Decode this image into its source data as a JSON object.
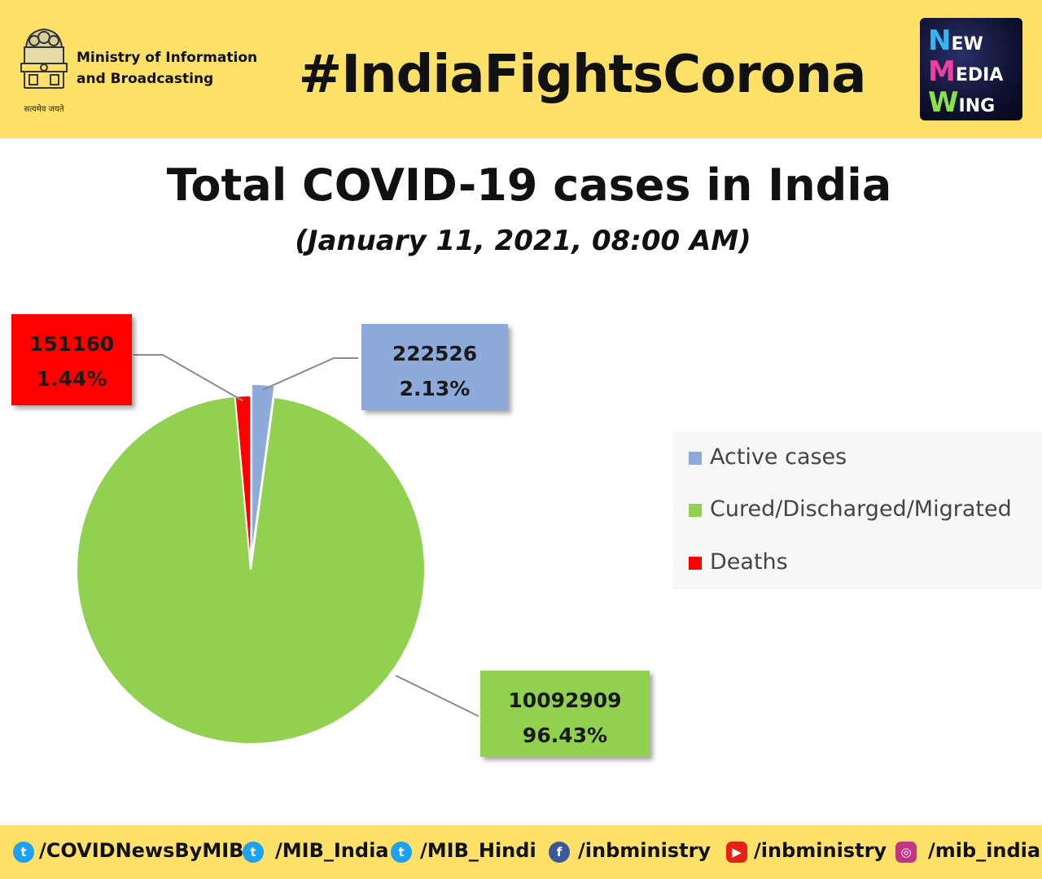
{
  "header": {
    "emblem_motto": "सत्यमेव जयते",
    "ministry_line1": "Ministry of Information",
    "ministry_line2": "and Broadcasting",
    "hashtag": "#IndiaFightsCorona",
    "nmw_line1_cap": "N",
    "nmw_line1_rest": "EW",
    "nmw_line2_cap": "M",
    "nmw_line2_rest": "EDIA",
    "nmw_line3_cap": "W",
    "nmw_line3_rest": "ING"
  },
  "chart_data": {
    "type": "pie",
    "title": "Total COVID-19 cases in India",
    "subtitle": "(January 11, 2021, 08:00 AM)",
    "series": [
      {
        "name": "Active cases",
        "value": 222526,
        "value_label": "222526",
        "percent_label": "2.13%",
        "color": "#8eaadb"
      },
      {
        "name": "Cured/Discharged/Migrated",
        "value": 10092909,
        "value_label": "10092909",
        "percent_label": "96.43%",
        "color": "#92d050"
      },
      {
        "name": "Deaths",
        "value": 151160,
        "value_label": "151160",
        "percent_label": "1.44%",
        "color": "#ff0000"
      }
    ],
    "legend_placement": "right"
  },
  "footer": {
    "handles": [
      {
        "icon": "twitter-icon",
        "label": "/COVIDNewsByMIB",
        "color": "#1da1f2"
      },
      {
        "icon": "twitter-icon",
        "label": "/MIB_India",
        "color": "#1da1f2"
      },
      {
        "icon": "twitter-icon",
        "label": "/MIB_Hindi",
        "color": "#1da1f2"
      },
      {
        "icon": "facebook-icon",
        "label": "/inbministry",
        "color": "#3b5998"
      },
      {
        "icon": "youtube-icon",
        "label": "/inbministry",
        "color": "#e62117"
      },
      {
        "icon": "instagram-icon",
        "label": "/mib_india",
        "color": "#c13584"
      }
    ]
  }
}
